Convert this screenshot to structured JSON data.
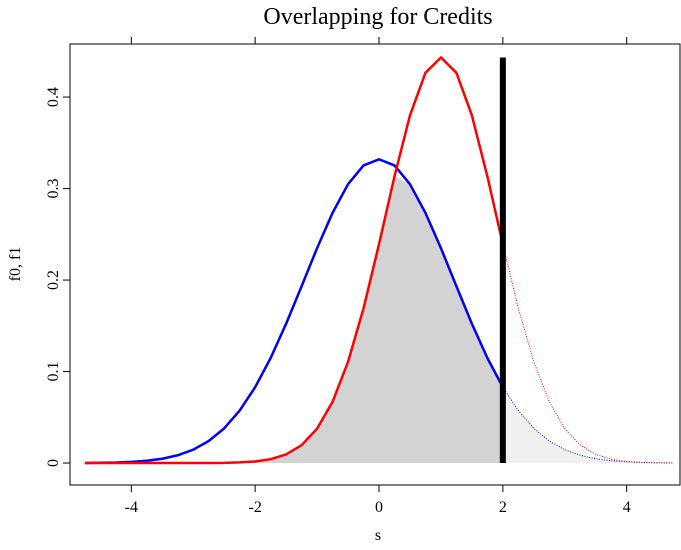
{
  "chart_data": {
    "type": "line",
    "title": "Overlapping for Credits",
    "x_label": "s",
    "y_label": "f0, f1",
    "x": [
      -4.75,
      -4.5,
      -4.25,
      -4,
      -3.75,
      -3.5,
      -3.25,
      -3,
      -2.75,
      -2.5,
      -2.25,
      -2,
      -1.75,
      -1.5,
      -1.25,
      -1,
      -0.75,
      -0.5,
      -0.25,
      0,
      0.25,
      0.5,
      0.75,
      1,
      1.25,
      1.5,
      1.75,
      2,
      2.25,
      2.5,
      2.75,
      3,
      3.25,
      3.5,
      3.75,
      4,
      4.25,
      4.5,
      4.75
    ],
    "series": [
      {
        "color": "#0000ff",
        "values": [
          0.0001,
          0.0003,
          0.0006,
          0.0013,
          0.0025,
          0.0047,
          0.0085,
          0.0146,
          0.0241,
          0.0379,
          0.0573,
          0.0829,
          0.1148,
          0.1522,
          0.1932,
          0.2349,
          0.2734,
          0.3048,
          0.3253,
          0.332,
          0.3253,
          0.3048,
          0.2734,
          0.2349,
          0.1932,
          0.1522,
          0.1148,
          0.0829,
          0.0573,
          0.0379,
          0.0241,
          0.0146,
          0.0085,
          0.0047,
          0.0025,
          0.0013,
          0.0006,
          0.0003,
          0.0001
        ]
      },
      {
        "color": "#ff0000",
        "values": [
          0,
          0,
          0,
          0,
          0,
          0,
          0,
          0,
          0.0001,
          0.0002,
          0.0007,
          0.0017,
          0.0042,
          0.0094,
          0.0195,
          0.0376,
          0.0669,
          0.1106,
          0.169,
          0.2391,
          0.3133,
          0.3799,
          0.4265,
          0.4433,
          0.4265,
          0.3799,
          0.3133,
          0.2391,
          0.169,
          0.1106,
          0.0669,
          0.0376,
          0.0195,
          0.0094,
          0.0042,
          0.0017,
          0.0007,
          0.0002,
          0.0001
        ]
      }
    ],
    "cutoff": 2,
    "xlim": [
      -4.99,
      4.99
    ],
    "ylim": [
      -0.024,
      0.458
    ],
    "xticks": [
      -4,
      -2,
      0,
      2,
      4
    ],
    "yticks": [
      0,
      0.1,
      0.2,
      0.3,
      0.4
    ]
  }
}
